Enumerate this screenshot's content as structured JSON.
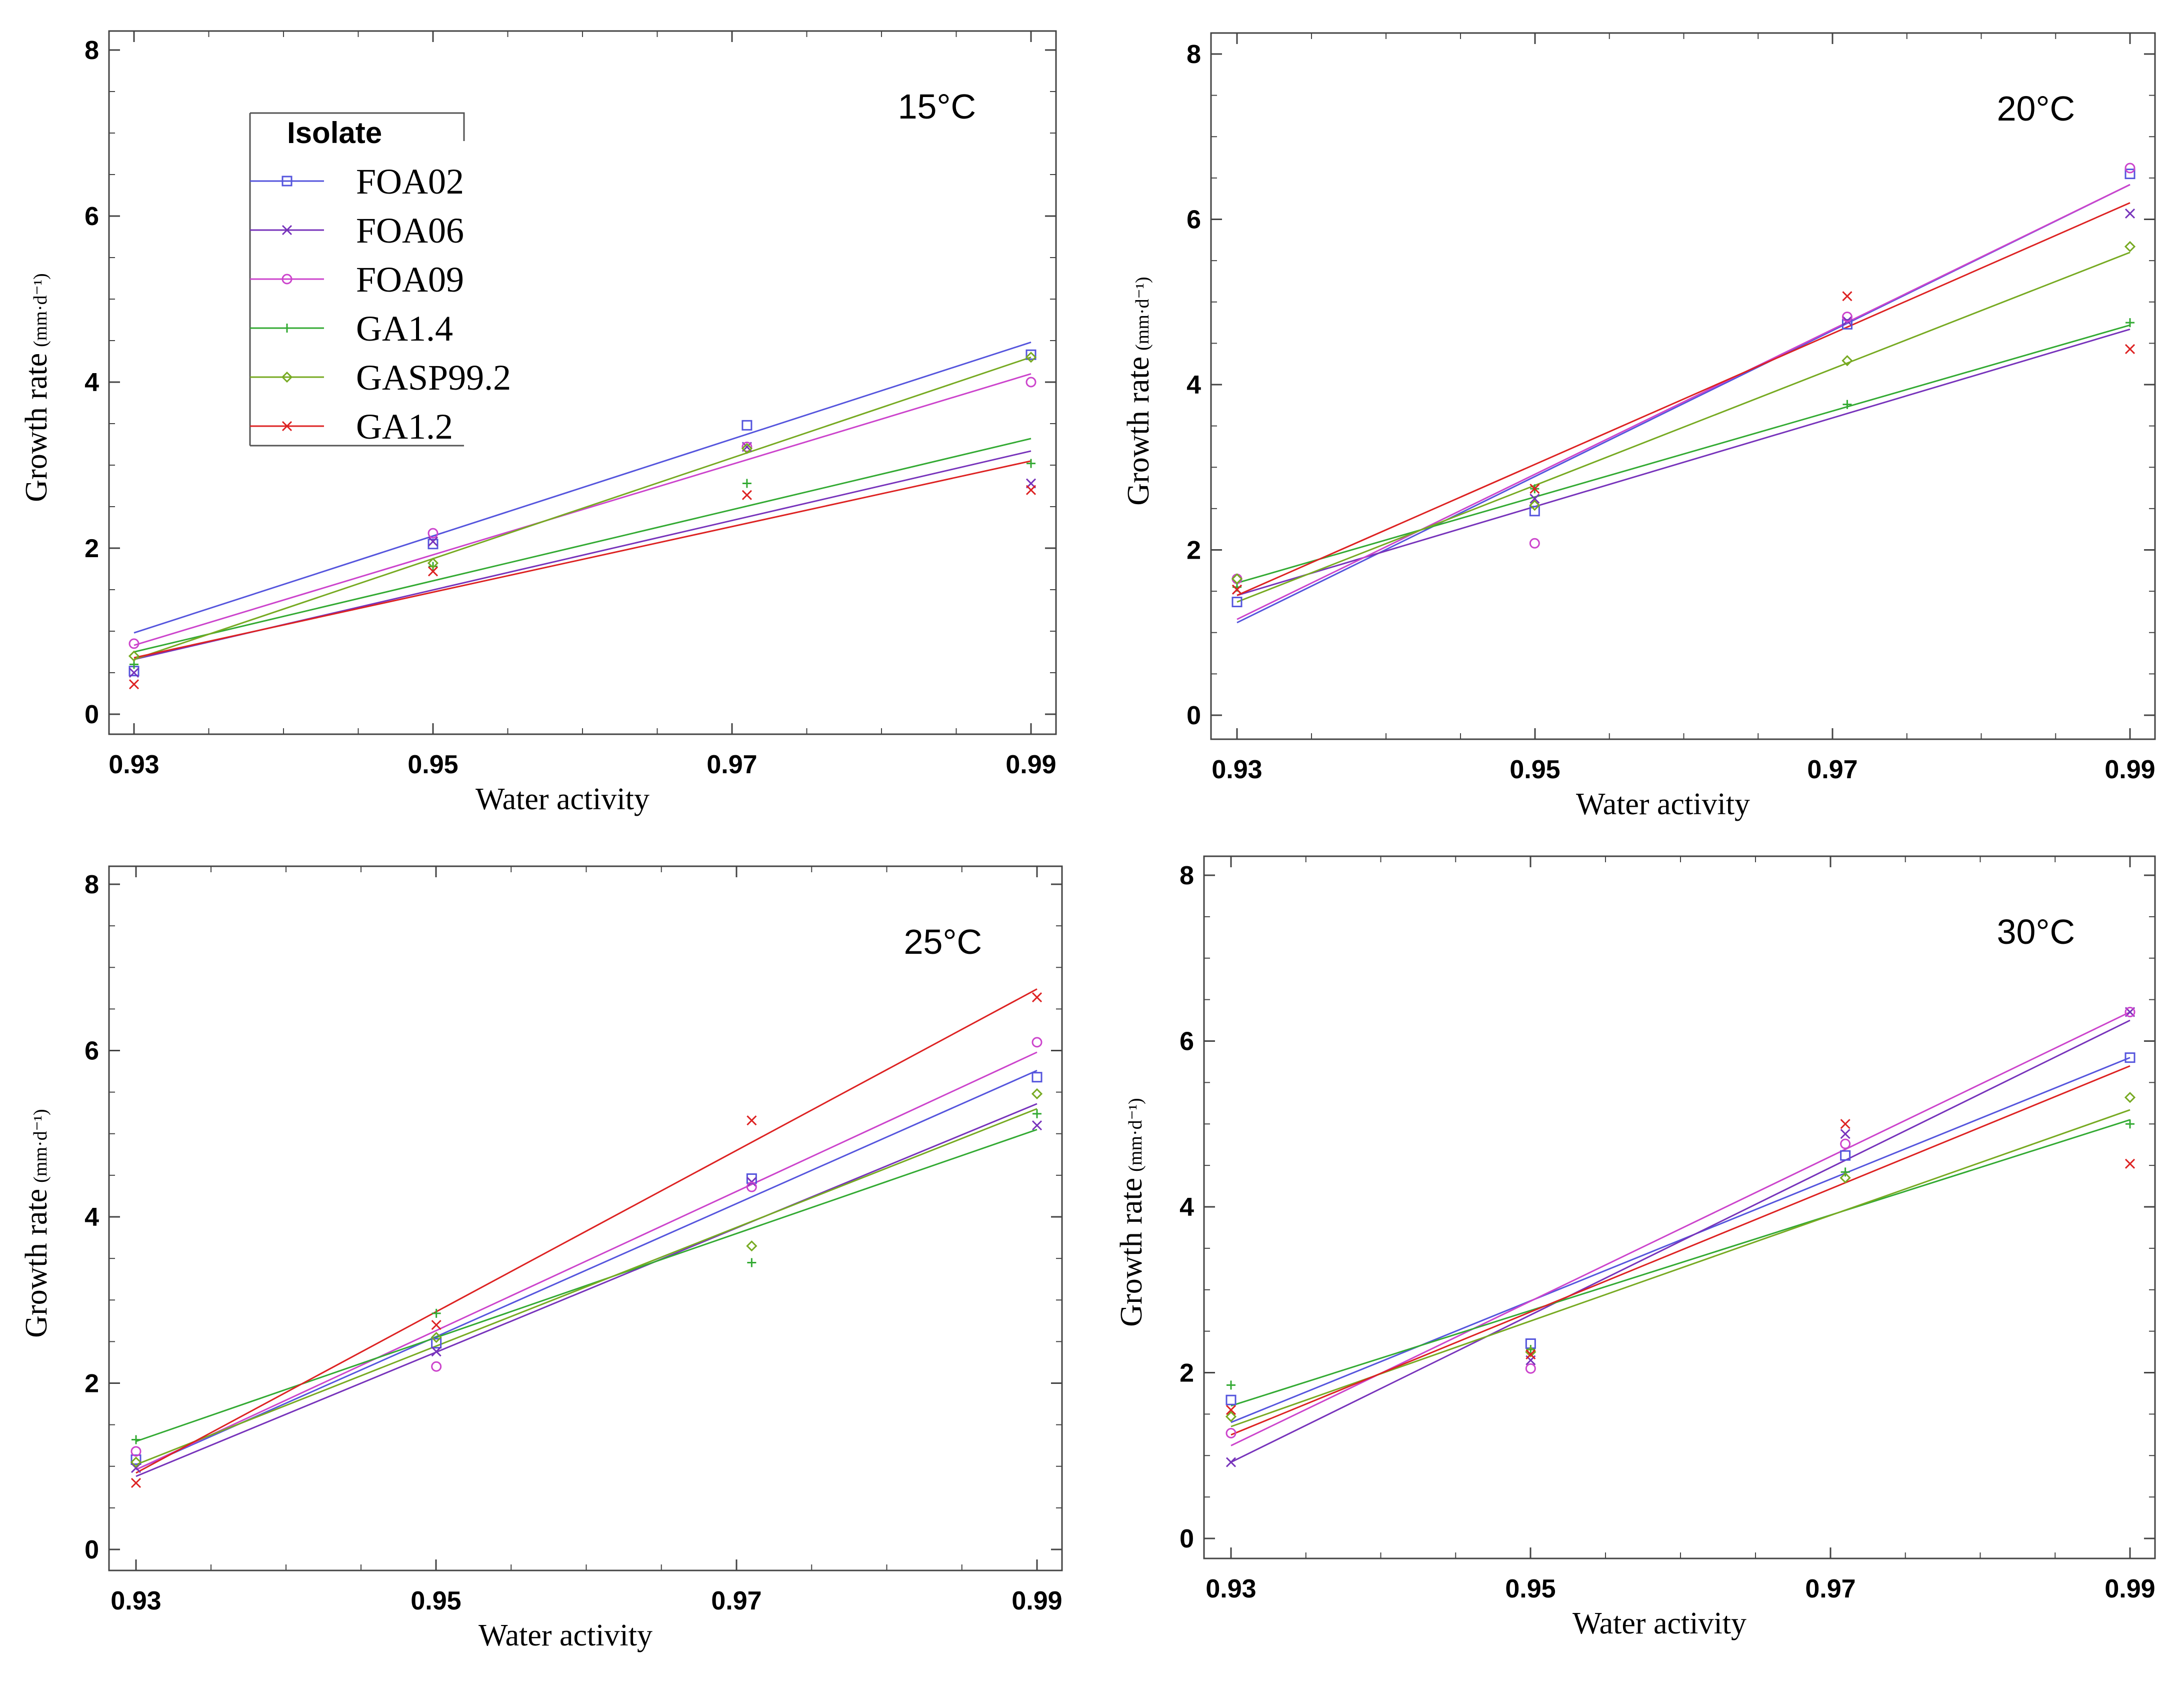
{
  "legend": {
    "title": "Isolate",
    "series": [
      {
        "name": "FOA02",
        "color": "#5555dd",
        "marker": "square"
      },
      {
        "name": "FOA06",
        "color": "#7733bb",
        "marker": "x"
      },
      {
        "name": "FOA09",
        "color": "#cc44cc",
        "marker": "circle"
      },
      {
        "name": "GA1.4",
        "color": "#33aa33",
        "marker": "plus"
      },
      {
        "name": "GASP99.2",
        "color": "#77aa22",
        "marker": "diamond"
      },
      {
        "name": "GA1.2",
        "color": "#dd2222",
        "marker": "x"
      }
    ]
  },
  "chart_data": [
    {
      "type": "scatter",
      "title": "15°C",
      "xlabel": "Water activity",
      "ylabel": "Growth rate",
      "ylabel_unit": "(mm·d⁻¹)",
      "xlim": [
        0.93,
        0.99
      ],
      "ylim": [
        0,
        8
      ],
      "x": [
        0.93,
        0.95,
        0.971,
        0.99
      ],
      "xticks": [
        "0.93",
        "0.95",
        "0.97",
        "0.99"
      ],
      "yticks": [
        "0",
        "2",
        "4",
        "6",
        "8"
      ],
      "series": [
        {
          "name": "FOA02",
          "values": [
            0.52,
            2.05,
            3.48,
            4.33
          ],
          "line": [
            0.98,
            4.48
          ]
        },
        {
          "name": "FOA06",
          "values": [
            0.5,
            2.08,
            3.22,
            2.78
          ],
          "line": [
            0.66,
            3.17
          ]
        },
        {
          "name": "FOA09",
          "values": [
            0.85,
            2.18,
            3.22,
            4.0
          ],
          "line": [
            0.83,
            4.1
          ]
        },
        {
          "name": "GA1.4",
          "values": [
            0.6,
            1.78,
            2.78,
            3.02
          ],
          "line": [
            0.75,
            3.32
          ]
        },
        {
          "name": "GASP99.2",
          "values": [
            0.7,
            1.82,
            3.2,
            4.3
          ],
          "line": [
            0.66,
            4.3
          ]
        },
        {
          "name": "GA1.2",
          "values": [
            0.36,
            1.72,
            2.64,
            2.7
          ],
          "line": [
            0.68,
            3.05
          ]
        }
      ]
    },
    {
      "type": "scatter",
      "title": "20°C",
      "xlabel": "Water activity",
      "ylabel": "Growth rate",
      "ylabel_unit": "(mm·d⁻¹)",
      "xlim": [
        0.93,
        0.99
      ],
      "ylim": [
        0,
        8
      ],
      "x": [
        0.93,
        0.95,
        0.971,
        0.99
      ],
      "xticks": [
        "0.93",
        "0.95",
        "0.97",
        "0.99"
      ],
      "yticks": [
        "0",
        "2",
        "4",
        "6",
        "8"
      ],
      "series": [
        {
          "name": "FOA02",
          "values": [
            1.37,
            2.47,
            4.73,
            6.55
          ],
          "line": [
            1.12,
            6.42
          ]
        },
        {
          "name": "FOA06",
          "values": [
            1.52,
            2.62,
            4.77,
            6.07
          ],
          "line": [
            1.45,
            4.67
          ]
        },
        {
          "name": "FOA09",
          "values": [
            1.65,
            2.08,
            4.82,
            6.62
          ],
          "line": [
            1.16,
            6.42
          ]
        },
        {
          "name": "GA1.4",
          "values": [
            1.55,
            2.74,
            3.76,
            4.75
          ],
          "line": [
            1.6,
            4.72
          ]
        },
        {
          "name": "GASP99.2",
          "values": [
            1.65,
            2.54,
            4.29,
            5.67
          ],
          "line": [
            1.37,
            5.6
          ]
        },
        {
          "name": "GA1.2",
          "values": [
            1.52,
            2.74,
            5.07,
            4.43
          ],
          "line": [
            1.45,
            6.2
          ]
        }
      ]
    },
    {
      "type": "scatter",
      "title": "25°C",
      "xlabel": "Water activity",
      "ylabel": "Growth rate",
      "ylabel_unit": "(mm·d⁻¹)",
      "xlim": [
        0.93,
        0.99
      ],
      "ylim": [
        0,
        8
      ],
      "x": [
        0.93,
        0.95,
        0.971,
        0.99
      ],
      "xticks": [
        "0.93",
        "0.95",
        "0.97",
        "0.99"
      ],
      "yticks": [
        "0",
        "2",
        "4",
        "6",
        "8"
      ],
      "series": [
        {
          "name": "FOA02",
          "values": [
            1.08,
            2.48,
            4.46,
            5.68
          ],
          "line": [
            0.96,
            5.76
          ]
        },
        {
          "name": "FOA06",
          "values": [
            0.98,
            2.38,
            4.42,
            5.1
          ],
          "line": [
            0.88,
            5.36
          ]
        },
        {
          "name": "FOA09",
          "values": [
            1.18,
            2.2,
            4.36,
            6.1
          ],
          "line": [
            0.96,
            5.98
          ]
        },
        {
          "name": "GA1.4",
          "values": [
            1.32,
            2.84,
            3.45,
            5.24
          ],
          "line": [
            1.3,
            5.05
          ]
        },
        {
          "name": "GASP99.2",
          "values": [
            1.05,
            2.55,
            3.65,
            5.48
          ],
          "line": [
            1.02,
            5.3
          ]
        },
        {
          "name": "GA1.2",
          "values": [
            0.8,
            2.7,
            5.16,
            6.64
          ],
          "line": [
            0.92,
            6.74
          ]
        }
      ]
    },
    {
      "type": "scatter",
      "title": "30°C",
      "xlabel": "Water activity",
      "ylabel": "Growth rate",
      "ylabel_unit": "(mm·d⁻¹)",
      "xlim": [
        0.93,
        0.99
      ],
      "ylim": [
        0,
        8
      ],
      "x": [
        0.93,
        0.95,
        0.971,
        0.99
      ],
      "xticks": [
        "0.93",
        "0.95",
        "0.97",
        "0.99"
      ],
      "yticks": [
        "0",
        "2",
        "4",
        "6",
        "8"
      ],
      "series": [
        {
          "name": "FOA02",
          "values": [
            1.67,
            2.35,
            4.62,
            5.8
          ],
          "line": [
            1.4,
            5.8
          ]
        },
        {
          "name": "FOA06",
          "values": [
            0.92,
            2.15,
            4.88,
            6.35
          ],
          "line": [
            0.92,
            6.25
          ]
        },
        {
          "name": "FOA09",
          "values": [
            1.27,
            2.05,
            4.76,
            6.35
          ],
          "line": [
            1.12,
            6.35
          ]
        },
        {
          "name": "GA1.4",
          "values": [
            1.85,
            2.28,
            4.42,
            5.0
          ],
          "line": [
            1.6,
            5.05
          ]
        },
        {
          "name": "GASP99.2",
          "values": [
            1.47,
            2.25,
            4.35,
            5.32
          ],
          "line": [
            1.35,
            5.17
          ]
        },
        {
          "name": "GA1.2",
          "values": [
            1.55,
            2.22,
            5.0,
            4.52
          ],
          "line": [
            1.25,
            5.7
          ]
        }
      ]
    }
  ]
}
